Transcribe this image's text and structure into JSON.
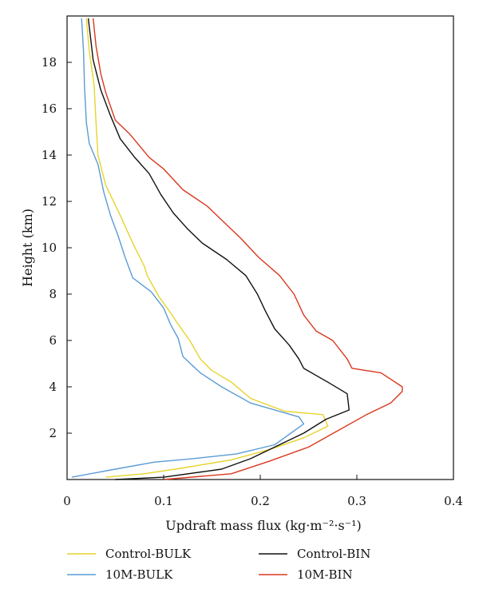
{
  "chart_data": {
    "type": "line",
    "xlabel": "Updraft mass flux (kg·m⁻²·s⁻¹)",
    "ylabel": "Height (km)",
    "xlim": [
      0,
      0.4
    ],
    "ylim": [
      0,
      20
    ],
    "xticks": [
      0,
      0.1,
      0.2,
      0.3,
      0.4
    ],
    "xtick_labels": [
      "0",
      "0.1",
      "0.2",
      "0.3",
      "0.4"
    ],
    "yticks": [
      2,
      4,
      6,
      8,
      10,
      12,
      14,
      16,
      18
    ],
    "ytick_labels": [
      "2",
      "4",
      "6",
      "8",
      "10",
      "12",
      "14",
      "16",
      "18"
    ],
    "grid": false,
    "legend_position": "below",
    "series": [
      {
        "name": "Control-BULK",
        "color": "#e6d42a",
        "points": [
          [
            0.04,
            0.1
          ],
          [
            0.08,
            0.25
          ],
          [
            0.12,
            0.5
          ],
          [
            0.17,
            0.85
          ],
          [
            0.21,
            1.3
          ],
          [
            0.245,
            1.8
          ],
          [
            0.27,
            2.3
          ],
          [
            0.265,
            2.8
          ],
          [
            0.225,
            2.95
          ],
          [
            0.19,
            3.5
          ],
          [
            0.17,
            4.2
          ],
          [
            0.15,
            4.7
          ],
          [
            0.138,
            5.2
          ],
          [
            0.127,
            6.0
          ],
          [
            0.115,
            6.7
          ],
          [
            0.107,
            7.2
          ],
          [
            0.095,
            7.9
          ],
          [
            0.083,
            8.8
          ],
          [
            0.08,
            9.2
          ],
          [
            0.068,
            10.2
          ],
          [
            0.055,
            11.4
          ],
          [
            0.04,
            12.7
          ],
          [
            0.032,
            14.0
          ],
          [
            0.03,
            15.4
          ],
          [
            0.028,
            17.0
          ],
          [
            0.023,
            18.5
          ],
          [
            0.02,
            19.9
          ]
        ]
      },
      {
        "name": "10M-BULK",
        "color": "#5b9bd5",
        "points": [
          [
            0.005,
            0.1
          ],
          [
            0.05,
            0.45
          ],
          [
            0.09,
            0.75
          ],
          [
            0.13,
            0.9
          ],
          [
            0.175,
            1.1
          ],
          [
            0.215,
            1.5
          ],
          [
            0.245,
            2.4
          ],
          [
            0.24,
            2.7
          ],
          [
            0.19,
            3.3
          ],
          [
            0.16,
            4.0
          ],
          [
            0.138,
            4.6
          ],
          [
            0.12,
            5.3
          ],
          [
            0.115,
            6.1
          ],
          [
            0.107,
            6.7
          ],
          [
            0.1,
            7.4
          ],
          [
            0.087,
            8.1
          ],
          [
            0.068,
            8.7
          ],
          [
            0.06,
            9.6
          ],
          [
            0.053,
            10.5
          ],
          [
            0.045,
            11.4
          ],
          [
            0.038,
            12.4
          ],
          [
            0.032,
            13.6
          ],
          [
            0.023,
            14.5
          ],
          [
            0.02,
            15.4
          ],
          [
            0.018,
            17.0
          ],
          [
            0.017,
            18.5
          ],
          [
            0.015,
            19.9
          ]
        ]
      },
      {
        "name": "Control-BIN",
        "color": "#111111",
        "points": [
          [
            0.05,
            0.0
          ],
          [
            0.1,
            0.1
          ],
          [
            0.16,
            0.45
          ],
          [
            0.19,
            0.9
          ],
          [
            0.215,
            1.4
          ],
          [
            0.245,
            2.0
          ],
          [
            0.268,
            2.6
          ],
          [
            0.292,
            3.0
          ],
          [
            0.29,
            3.7
          ],
          [
            0.27,
            4.2
          ],
          [
            0.245,
            4.8
          ],
          [
            0.24,
            5.2
          ],
          [
            0.23,
            5.8
          ],
          [
            0.215,
            6.5
          ],
          [
            0.205,
            7.3
          ],
          [
            0.197,
            8.0
          ],
          [
            0.185,
            8.8
          ],
          [
            0.165,
            9.5
          ],
          [
            0.14,
            10.2
          ],
          [
            0.125,
            10.8
          ],
          [
            0.11,
            11.5
          ],
          [
            0.097,
            12.3
          ],
          [
            0.085,
            13.2
          ],
          [
            0.07,
            13.9
          ],
          [
            0.055,
            14.7
          ],
          [
            0.045,
            15.7
          ],
          [
            0.035,
            16.8
          ],
          [
            0.027,
            18.1
          ],
          [
            0.022,
            19.9
          ]
        ]
      },
      {
        "name": "10M-BIN",
        "color": "#d9381e",
        "points": [
          [
            0.1,
            0.0
          ],
          [
            0.17,
            0.25
          ],
          [
            0.21,
            0.8
          ],
          [
            0.25,
            1.4
          ],
          [
            0.28,
            2.1
          ],
          [
            0.31,
            2.8
          ],
          [
            0.335,
            3.3
          ],
          [
            0.347,
            3.8
          ],
          [
            0.347,
            4.0
          ],
          [
            0.325,
            4.6
          ],
          [
            0.295,
            4.8
          ],
          [
            0.29,
            5.2
          ],
          [
            0.275,
            6.0
          ],
          [
            0.258,
            6.4
          ],
          [
            0.245,
            7.1
          ],
          [
            0.235,
            8.0
          ],
          [
            0.22,
            8.8
          ],
          [
            0.198,
            9.6
          ],
          [
            0.18,
            10.4
          ],
          [
            0.16,
            11.2
          ],
          [
            0.145,
            11.8
          ],
          [
            0.12,
            12.5
          ],
          [
            0.1,
            13.4
          ],
          [
            0.085,
            13.9
          ],
          [
            0.065,
            14.9
          ],
          [
            0.05,
            15.5
          ],
          [
            0.04,
            16.7
          ],
          [
            0.035,
            17.5
          ],
          [
            0.03,
            18.7
          ],
          [
            0.027,
            19.9
          ]
        ]
      }
    ]
  }
}
